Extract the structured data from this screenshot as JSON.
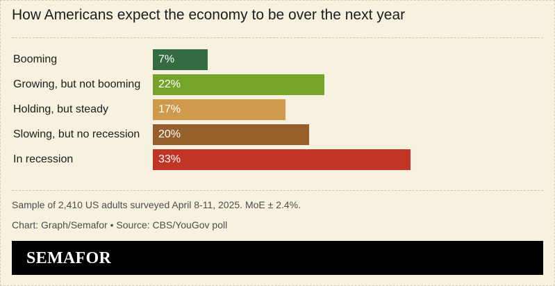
{
  "page": {
    "title": "How Americans expect the economy to be over the next year",
    "note": "Sample of 2,410 US adults surveyed April 8-11, 2025. MoE ± 2.4%.",
    "credit": "Chart: Graph/Semafor • Source: CBS/YouGov poll",
    "logo": "SEMAFOR"
  },
  "chart_data": {
    "type": "bar",
    "orientation": "horizontal",
    "title": "How Americans expect the economy to be over the next year",
    "categories": [
      "Booming",
      "Growing, but not booming",
      "Holding, but steady",
      "Slowing, but no recession",
      "In recession"
    ],
    "values": [
      7,
      22,
      17,
      20,
      33
    ],
    "value_labels": [
      "7%",
      "22%",
      "17%",
      "20%",
      "33%"
    ],
    "colors": [
      "#346b40",
      "#75a42a",
      "#cf9a4b",
      "#96602c",
      "#c13426"
    ],
    "unit": "%",
    "xlabel": "",
    "ylabel": "",
    "xlim": [
      0,
      33
    ]
  }
}
